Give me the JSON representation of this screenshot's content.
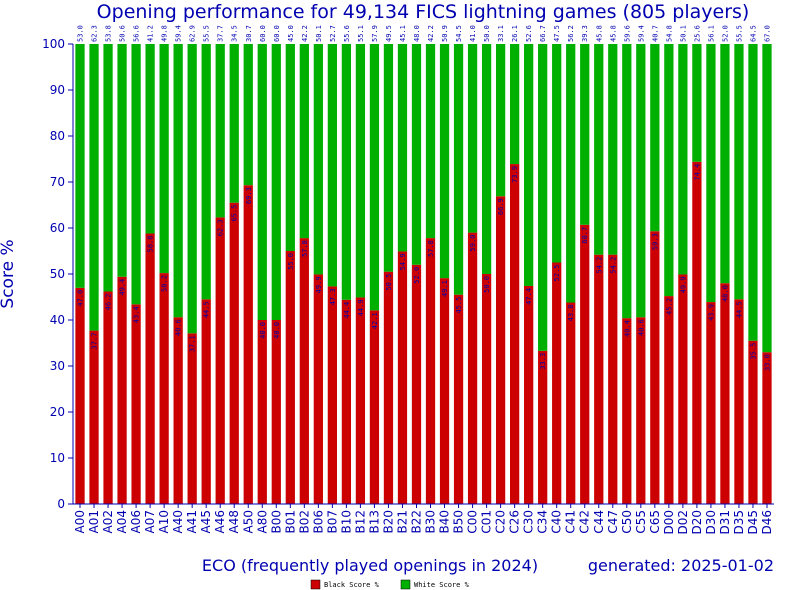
{
  "chart_data": {
    "type": "bar",
    "stacked": true,
    "title": "Opening performance for 49,134 FICS lightning games (805 players)",
    "xlabel": "ECO (frequently played openings in 2024)",
    "ylabel": "Score %",
    "generated": "generated: 2025-01-02",
    "ylim": [
      0,
      100
    ],
    "yticks": [
      "0",
      "10",
      "20",
      "30",
      "40",
      "50",
      "60",
      "70",
      "80",
      "90",
      "100"
    ],
    "grid": false,
    "legend_position": "bottom-center",
    "categories": [
      "A00",
      "A01",
      "A02",
      "A04",
      "A06",
      "A07",
      "A10",
      "A40",
      "A41",
      "A45",
      "A46",
      "A48",
      "A50",
      "A80",
      "B00",
      "B01",
      "B02",
      "B06",
      "B07",
      "B10",
      "B12",
      "B13",
      "B20",
      "B21",
      "B22",
      "B30",
      "B40",
      "B50",
      "C00",
      "C01",
      "C20",
      "C26",
      "C30",
      "C34",
      "C40",
      "C41",
      "C42",
      "C44",
      "C47",
      "C50",
      "C55",
      "C65",
      "D00",
      "D02",
      "D20",
      "D30",
      "D31",
      "D35",
      "D45",
      "D46"
    ],
    "series": [
      {
        "name": "Black Score %",
        "color": "#cc0000",
        "values": [
          47.0,
          37.7,
          46.2,
          49.4,
          43.4,
          58.8,
          50.2,
          40.6,
          37.1,
          44.5,
          62.3,
          65.5,
          69.3,
          40.0,
          40.0,
          55.0,
          57.8,
          49.9,
          47.3,
          44.4,
          44.9,
          42.1,
          50.5,
          54.9,
          52.0,
          57.8,
          49.1,
          45.5,
          59.0,
          50.0,
          66.9,
          73.9,
          47.4,
          33.3,
          52.5,
          43.8,
          60.7,
          54.2,
          54.2,
          40.4,
          40.6,
          59.3,
          45.2,
          49.9,
          74.4,
          43.9,
          48.0,
          44.5,
          35.5,
          33.0
        ]
      },
      {
        "name": "White Score %",
        "color": "#00b000",
        "values": [
          53.0,
          62.3,
          53.8,
          50.6,
          56.6,
          41.2,
          49.8,
          59.4,
          62.9,
          55.5,
          37.7,
          34.5,
          30.7,
          60.0,
          60.0,
          45.0,
          42.2,
          50.1,
          52.7,
          55.6,
          55.1,
          57.9,
          49.5,
          45.1,
          48.0,
          42.2,
          50.9,
          54.5,
          41.0,
          50.0,
          33.1,
          26.1,
          52.6,
          66.7,
          47.5,
          56.2,
          39.3,
          45.8,
          45.8,
          59.6,
          59.4,
          40.7,
          54.8,
          50.1,
          25.6,
          56.1,
          52.0,
          55.5,
          64.5,
          67.0
        ]
      }
    ]
  }
}
